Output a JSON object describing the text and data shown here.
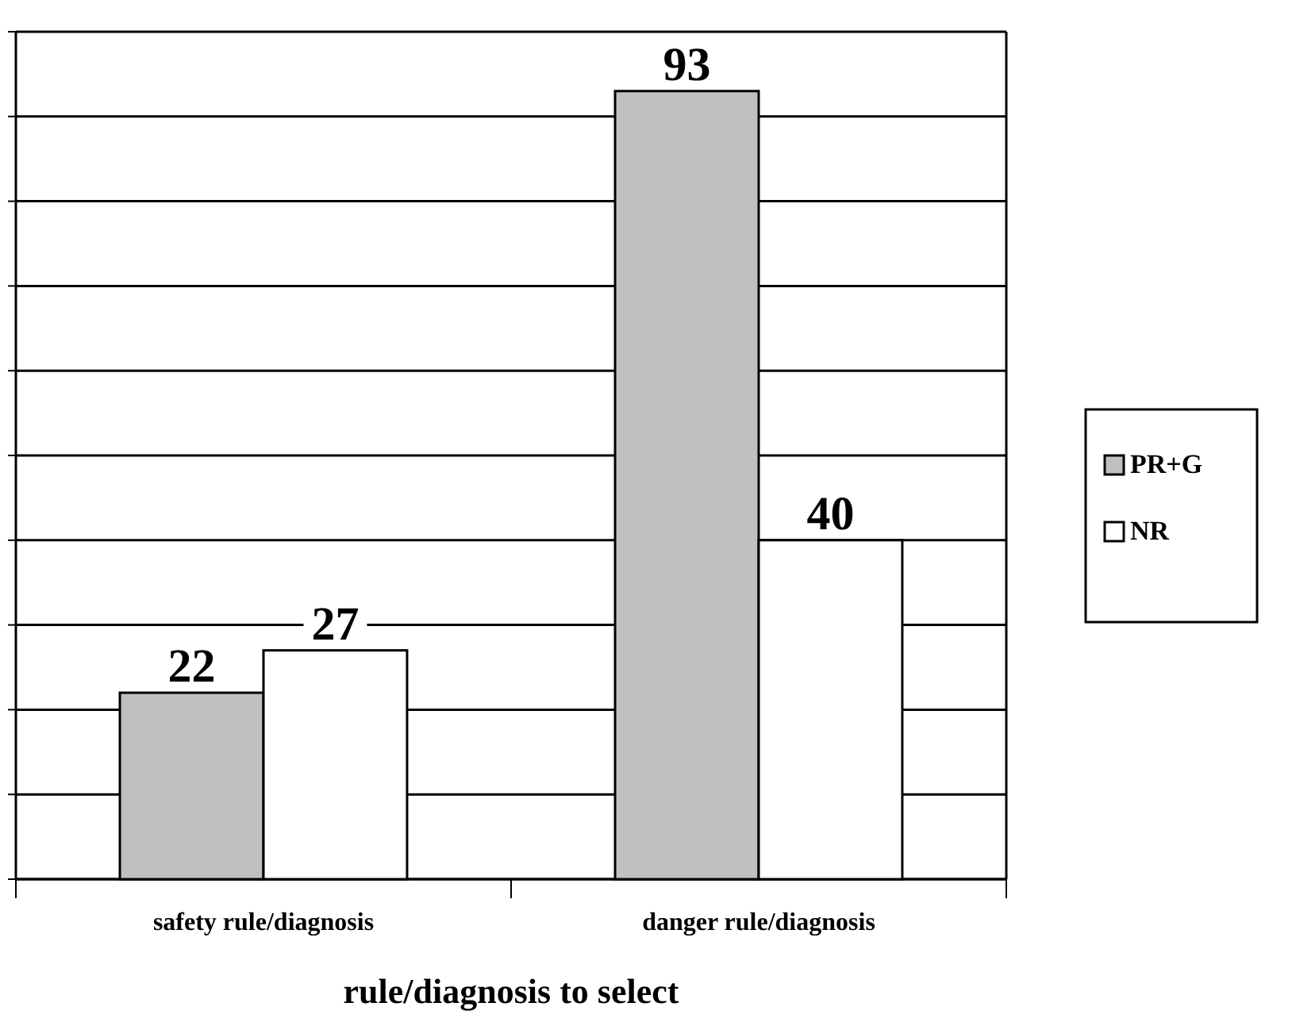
{
  "chart_data": {
    "type": "bar",
    "xlabel": "rule/diagnosis to select",
    "categories": [
      "safety rule/diagnosis",
      "danger rule/diagnosis"
    ],
    "series": [
      {
        "name": "PR+G",
        "color": "#c0c0c0",
        "values": [
          22,
          93
        ]
      },
      {
        "name": "NR",
        "color": "#ffffff",
        "values": [
          27,
          40
        ]
      }
    ],
    "ylim": [
      0,
      100
    ],
    "yticks": [
      {
        "value": 0,
        "label": null
      },
      {
        "value": 10,
        "label": null
      },
      {
        "value": 20,
        "label": null
      },
      {
        "value": 30,
        "label": null
      },
      {
        "value": 40,
        "label": null
      },
      {
        "value": 50,
        "label": null
      },
      {
        "value": 60,
        "label": null
      },
      {
        "value": 70,
        "label": null
      },
      {
        "value": 80,
        "label": null
      },
      {
        "value": 90,
        "label": null
      },
      {
        "value": 100,
        "label": null
      }
    ],
    "tick_labels": "x",
    "grid": "y",
    "legend": "right",
    "data_labels": true
  }
}
